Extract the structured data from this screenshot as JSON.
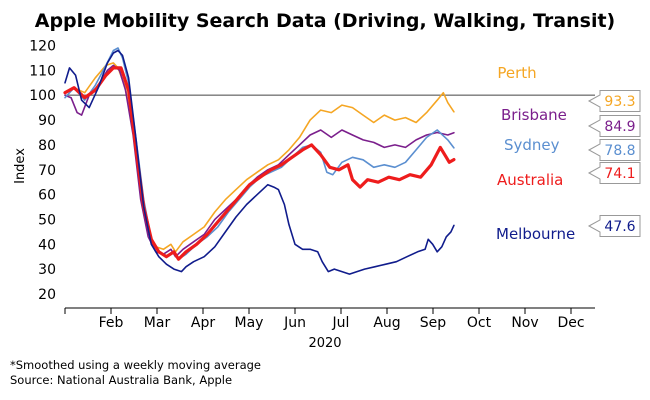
{
  "chart_data": {
    "type": "line",
    "title": "Apple Mobility Search Data (Driving, Walking, Transit)",
    "ylabel": "Index",
    "xlabel": "2020",
    "ylim": [
      15,
      125
    ],
    "yticks": [
      20,
      30,
      40,
      50,
      60,
      70,
      80,
      90,
      100,
      110,
      120
    ],
    "months": [
      "Feb",
      "Mar",
      "Apr",
      "May",
      "Jun",
      "Jul",
      "Aug",
      "Sep",
      "Oct",
      "Nov",
      "Dec"
    ],
    "reference_line": 100,
    "series": [
      {
        "name": "Perth",
        "color": "#f5a623",
        "width": 1.6,
        "last": "93.3",
        "points": [
          [
            0,
            101
          ],
          [
            6,
            103
          ],
          [
            13,
            101
          ],
          [
            20,
            107
          ],
          [
            27,
            112
          ],
          [
            32,
            113
          ],
          [
            35,
            111
          ],
          [
            40,
            103
          ],
          [
            45,
            85
          ],
          [
            50,
            60
          ],
          [
            55,
            45
          ],
          [
            60,
            39
          ],
          [
            65,
            38
          ],
          [
            70,
            40
          ],
          [
            73,
            37
          ],
          [
            78,
            41
          ],
          [
            85,
            44
          ],
          [
            92,
            47
          ],
          [
            99,
            53
          ],
          [
            106,
            58
          ],
          [
            113,
            62
          ],
          [
            120,
            66
          ],
          [
            127,
            69
          ],
          [
            134,
            72
          ],
          [
            141,
            74
          ],
          [
            148,
            78
          ],
          [
            155,
            83
          ],
          [
            162,
            90
          ],
          [
            169,
            94
          ],
          [
            176,
            93
          ],
          [
            183,
            96
          ],
          [
            190,
            95
          ],
          [
            197,
            92
          ],
          [
            204,
            89
          ],
          [
            211,
            92
          ],
          [
            218,
            90
          ],
          [
            225,
            91
          ],
          [
            232,
            89
          ],
          [
            239,
            93
          ],
          [
            246,
            98
          ],
          [
            250,
            101
          ],
          [
            253,
            97
          ],
          [
            257,
            93.3
          ]
        ]
      },
      {
        "name": "Brisbane",
        "color": "#7b1f8c",
        "width": 1.6,
        "last": "84.9",
        "points": [
          [
            0,
            100
          ],
          [
            4,
            99
          ],
          [
            8,
            93
          ],
          [
            11,
            92
          ],
          [
            16,
            100
          ],
          [
            22,
            104
          ],
          [
            28,
            110
          ],
          [
            32,
            112
          ],
          [
            36,
            110
          ],
          [
            40,
            102
          ],
          [
            45,
            84
          ],
          [
            50,
            58
          ],
          [
            55,
            43
          ],
          [
            60,
            37
          ],
          [
            65,
            36
          ],
          [
            70,
            38
          ],
          [
            73,
            35
          ],
          [
            78,
            38
          ],
          [
            85,
            41
          ],
          [
            92,
            44
          ],
          [
            99,
            50
          ],
          [
            106,
            54
          ],
          [
            113,
            58
          ],
          [
            120,
            63
          ],
          [
            127,
            67
          ],
          [
            134,
            70
          ],
          [
            141,
            72
          ],
          [
            148,
            76
          ],
          [
            155,
            80
          ],
          [
            162,
            84
          ],
          [
            169,
            86
          ],
          [
            176,
            83
          ],
          [
            183,
            86
          ],
          [
            190,
            84
          ],
          [
            197,
            82
          ],
          [
            204,
            81
          ],
          [
            211,
            79
          ],
          [
            218,
            80
          ],
          [
            225,
            79
          ],
          [
            232,
            82
          ],
          [
            239,
            84
          ],
          [
            246,
            85
          ],
          [
            253,
            84
          ],
          [
            257,
            84.9
          ]
        ]
      },
      {
        "name": "Sydney",
        "color": "#5b8fd0",
        "width": 1.6,
        "last": "78.8",
        "points": [
          [
            0,
            99
          ],
          [
            6,
            103
          ],
          [
            13,
            98
          ],
          [
            20,
            104
          ],
          [
            27,
            112
          ],
          [
            32,
            118
          ],
          [
            35,
            119
          ],
          [
            38,
            115
          ],
          [
            42,
            105
          ],
          [
            47,
            82
          ],
          [
            52,
            58
          ],
          [
            57,
            42
          ],
          [
            62,
            37
          ],
          [
            67,
            35
          ],
          [
            72,
            37
          ],
          [
            75,
            34
          ],
          [
            80,
            36
          ],
          [
            87,
            40
          ],
          [
            94,
            43
          ],
          [
            101,
            47
          ],
          [
            108,
            53
          ],
          [
            115,
            58
          ],
          [
            122,
            63
          ],
          [
            129,
            67
          ],
          [
            136,
            69
          ],
          [
            143,
            71
          ],
          [
            150,
            75
          ],
          [
            157,
            79
          ],
          [
            163,
            80
          ],
          [
            169,
            77
          ],
          [
            173,
            69
          ],
          [
            177,
            68
          ],
          [
            183,
            73
          ],
          [
            190,
            75
          ],
          [
            197,
            74
          ],
          [
            204,
            71
          ],
          [
            211,
            72
          ],
          [
            218,
            71
          ],
          [
            225,
            73
          ],
          [
            232,
            78
          ],
          [
            239,
            83
          ],
          [
            246,
            86
          ],
          [
            253,
            82
          ],
          [
            257,
            78.8
          ]
        ]
      },
      {
        "name": "Australia",
        "color": "#ee1c1c",
        "width": 3.2,
        "last": "74.1",
        "points": [
          [
            0,
            101
          ],
          [
            6,
            103
          ],
          [
            13,
            99
          ],
          [
            20,
            102
          ],
          [
            27,
            108
          ],
          [
            32,
            111
          ],
          [
            37,
            111
          ],
          [
            42,
            102
          ],
          [
            47,
            78
          ],
          [
            52,
            55
          ],
          [
            57,
            42
          ],
          [
            62,
            37
          ],
          [
            67,
            35
          ],
          [
            72,
            37
          ],
          [
            75,
            34
          ],
          [
            80,
            37
          ],
          [
            87,
            40
          ],
          [
            94,
            44
          ],
          [
            101,
            49
          ],
          [
            108,
            54
          ],
          [
            115,
            59
          ],
          [
            122,
            64
          ],
          [
            129,
            67
          ],
          [
            136,
            70
          ],
          [
            143,
            72
          ],
          [
            150,
            75
          ],
          [
            157,
            78
          ],
          [
            163,
            80
          ],
          [
            169,
            76
          ],
          [
            175,
            71
          ],
          [
            181,
            70
          ],
          [
            187,
            72
          ],
          [
            190,
            66
          ],
          [
            195,
            63
          ],
          [
            200,
            66
          ],
          [
            207,
            65
          ],
          [
            214,
            67
          ],
          [
            221,
            66
          ],
          [
            228,
            68
          ],
          [
            235,
            67
          ],
          [
            242,
            72
          ],
          [
            248,
            79
          ],
          [
            252,
            75
          ],
          [
            254,
            73
          ],
          [
            257,
            74.1
          ]
        ]
      },
      {
        "name": "Melbourne",
        "color": "#101c8c",
        "width": 1.6,
        "last": "47.6",
        "points": [
          [
            0,
            105
          ],
          [
            3,
            111
          ],
          [
            7,
            108
          ],
          [
            11,
            98
          ],
          [
            16,
            95
          ],
          [
            22,
            103
          ],
          [
            28,
            113
          ],
          [
            32,
            117
          ],
          [
            35,
            118
          ],
          [
            38,
            116
          ],
          [
            42,
            107
          ],
          [
            47,
            82
          ],
          [
            52,
            55
          ],
          [
            57,
            40
          ],
          [
            62,
            35
          ],
          [
            67,
            32
          ],
          [
            72,
            30
          ],
          [
            77,
            29
          ],
          [
            80,
            31
          ],
          [
            85,
            33
          ],
          [
            92,
            35
          ],
          [
            99,
            39
          ],
          [
            106,
            45
          ],
          [
            113,
            51
          ],
          [
            120,
            56
          ],
          [
            127,
            60
          ],
          [
            134,
            64
          ],
          [
            138,
            63
          ],
          [
            141,
            62
          ],
          [
            145,
            56
          ],
          [
            148,
            48
          ],
          [
            152,
            40
          ],
          [
            157,
            38
          ],
          [
            162,
            38
          ],
          [
            167,
            37
          ],
          [
            170,
            33
          ],
          [
            174,
            29
          ],
          [
            178,
            30
          ],
          [
            183,
            29
          ],
          [
            188,
            28
          ],
          [
            193,
            29
          ],
          [
            198,
            30
          ],
          [
            205,
            31
          ],
          [
            212,
            32
          ],
          [
            219,
            33
          ],
          [
            226,
            35
          ],
          [
            233,
            37
          ],
          [
            238,
            38
          ],
          [
            240,
            42
          ],
          [
            243,
            40
          ],
          [
            246,
            37
          ],
          [
            249,
            39
          ],
          [
            252,
            43
          ],
          [
            255,
            45
          ],
          [
            257,
            47.6
          ]
        ]
      }
    ]
  },
  "footnote": {
    "line1": "*Smoothed using a weekly moving average",
    "line2": "Source: National Australia Bank, Apple"
  }
}
